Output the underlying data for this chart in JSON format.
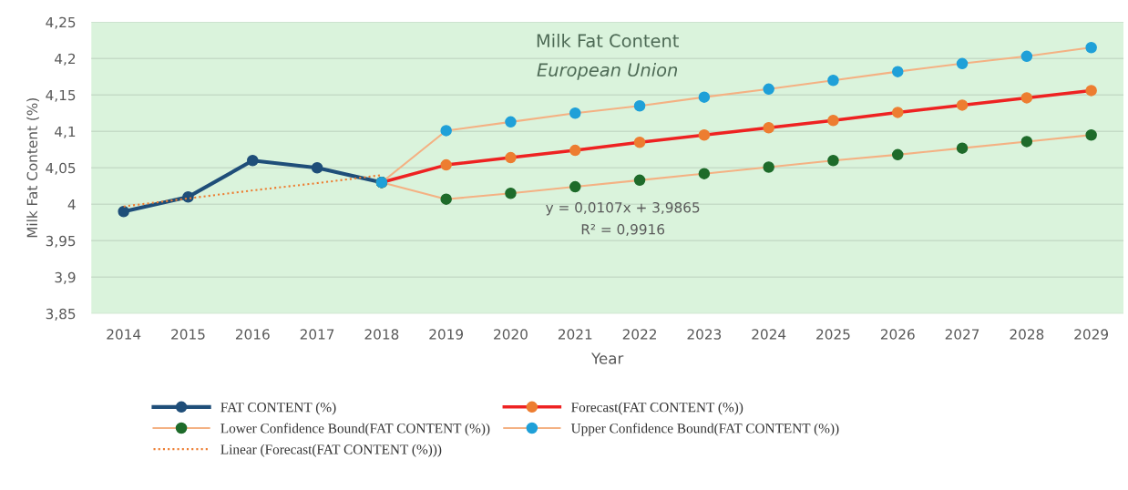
{
  "chart_data": {
    "type": "line",
    "title": "Milk Fat Content",
    "subtitle": "European Union",
    "xlabel": "Year",
    "ylabel": "Milk Fat Content (%)",
    "categories": [
      "2014",
      "2015",
      "2016",
      "2017",
      "2018",
      "2019",
      "2020",
      "2021",
      "2022",
      "2023",
      "2024",
      "2025",
      "2026",
      "2027",
      "2028",
      "2029"
    ],
    "series": [
      {
        "name": "FAT CONTENT (%)",
        "color": "#1f4e79",
        "values": [
          3.99,
          4.01,
          4.06,
          4.05,
          4.03,
          null,
          null,
          null,
          null,
          null,
          null,
          null,
          null,
          null,
          null,
          null
        ]
      },
      {
        "name": "Forecast(FAT CONTENT (%))",
        "color": "#ee2222",
        "colors": [
          null,
          null,
          null,
          null,
          "#ed7d31",
          "#ed7d31",
          "#ed7d31",
          "#ed7d31",
          "#ed7d31",
          "#ed7d31",
          "#ed7d31",
          "#ed7d31",
          "#ed7d31",
          "#ed7d31",
          "#ed7d31",
          "#ed7d31"
        ],
        "values": [
          null,
          null,
          null,
          null,
          4.03,
          4.054,
          4.064,
          4.074,
          4.085,
          4.095,
          4.105,
          4.115,
          4.126,
          4.136,
          4.146,
          4.156
        ]
      },
      {
        "name": "Lower Confidence Bound(FAT CONTENT (%))",
        "color": "#f4b183",
        "colors": [
          null,
          null,
          null,
          null,
          "#1e6b2a",
          "#1e6b2a",
          "#1e6b2a",
          "#1e6b2a",
          "#1e6b2a",
          "#1e6b2a",
          "#1e6b2a",
          "#1e6b2a",
          "#1e6b2a",
          "#1e6b2a",
          "#1e6b2a",
          "#1e6b2a"
        ],
        "values": [
          null,
          null,
          null,
          null,
          4.03,
          4.007,
          4.015,
          4.024,
          4.033,
          4.042,
          4.051,
          4.06,
          4.068,
          4.077,
          4.086,
          4.095
        ]
      },
      {
        "name": "Upper Confidence Bound(FAT CONTENT (%))",
        "color": "#f4b183",
        "colors": [
          null,
          null,
          null,
          null,
          "#1fa0d8",
          "#1fa0d8",
          "#1fa0d8",
          "#1fa0d8",
          "#1fa0d8",
          "#1fa0d8",
          "#1fa0d8",
          "#1fa0d8",
          "#1fa0d8",
          "#1fa0d8",
          "#1fa0d8",
          "#1fa0d8"
        ],
        "values": [
          null,
          null,
          null,
          null,
          4.03,
          4.101,
          4.113,
          4.125,
          4.135,
          4.147,
          4.158,
          4.17,
          4.182,
          4.193,
          4.203,
          4.215
        ]
      },
      {
        "name": "Linear (Forecast(FAT CONTENT (%)))",
        "color": "#ed7d31",
        "marker": "none",
        "line_style": "dotted",
        "values": [
          3.997,
          4.008,
          4.019,
          4.029,
          4.04,
          null,
          null,
          null,
          null,
          null,
          null,
          null,
          null,
          null,
          null,
          null
        ]
      }
    ],
    "ylim": [
      3.85,
      4.25
    ],
    "yticks": [
      {
        "value": 3.85,
        "label": "3,85"
      },
      {
        "value": 3.9,
        "label": "3,9"
      },
      {
        "value": 3.95,
        "label": "3,95"
      },
      {
        "value": 4,
        "label": "4"
      },
      {
        "value": 4.05,
        "label": "4,05"
      },
      {
        "value": 4.1,
        "label": "4,1"
      },
      {
        "value": 4.15,
        "label": "4,15"
      },
      {
        "value": 4.2,
        "label": "4,2"
      },
      {
        "value": 4.25,
        "label": "4,25"
      }
    ],
    "annotations": [
      "y = 0,0107x + 3,9865",
      "R² = 0,9916"
    ],
    "grid": "y",
    "legend": "bottom",
    "marker": "circle",
    "line_style": "solid"
  }
}
